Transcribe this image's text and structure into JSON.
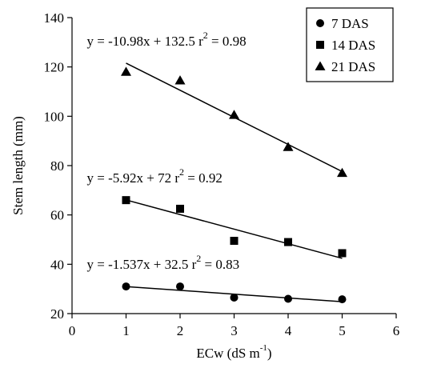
{
  "chart_data": {
    "type": "scatter",
    "x_axis": {
      "label_main": "ECw (dS m",
      "label_sup": "-1",
      "label_close": ")",
      "range": [
        0,
        6
      ],
      "ticks": [
        0,
        1,
        2,
        3,
        4,
        5,
        6
      ],
      "tick_labels": [
        "0",
        "1",
        "2",
        "3",
        "4",
        "5",
        "6"
      ]
    },
    "y_axis": {
      "label": "Stem length (mm)",
      "range": [
        20,
        140
      ],
      "ticks": [
        20,
        40,
        60,
        80,
        100,
        120,
        140
      ],
      "tick_labels": [
        "20",
        "40",
        "60",
        "80",
        "100",
        "120",
        "140"
      ]
    },
    "grid": false,
    "legend_position": "top-right",
    "series": [
      {
        "name": "7 DAS",
        "marker": "circle",
        "x": [
          1,
          2,
          3,
          4,
          5
        ],
        "y": [
          31,
          31,
          26.5,
          26,
          25.8
        ],
        "trendline": {
          "slope": -1.537,
          "intercept": 32.5
        },
        "equation": "y = -1.537x + 32.5",
        "r2_prefix": "r",
        "r2_exp": "2",
        "r2_suffix": " = 0.83"
      },
      {
        "name": "14 DAS",
        "marker": "square",
        "x": [
          1,
          2,
          3,
          4,
          5
        ],
        "y": [
          66,
          62.5,
          49.5,
          49,
          44.5
        ],
        "trendline": {
          "slope": -5.92,
          "intercept": 72
        },
        "equation": "y = -5.92x + 72",
        "r2_prefix": "r",
        "r2_exp": "2",
        "r2_suffix": " = 0.92"
      },
      {
        "name": "21 DAS",
        "marker": "triangle",
        "x": [
          1,
          2,
          3,
          4,
          5
        ],
        "y": [
          118,
          114.5,
          100.5,
          87.5,
          77
        ],
        "trendline": {
          "slope": -10.98,
          "intercept": 132.5
        },
        "equation": "y = -10.98x + 132.5",
        "r2_prefix": "r",
        "r2_exp": "2",
        "r2_suffix": " = 0.98"
      }
    ]
  }
}
